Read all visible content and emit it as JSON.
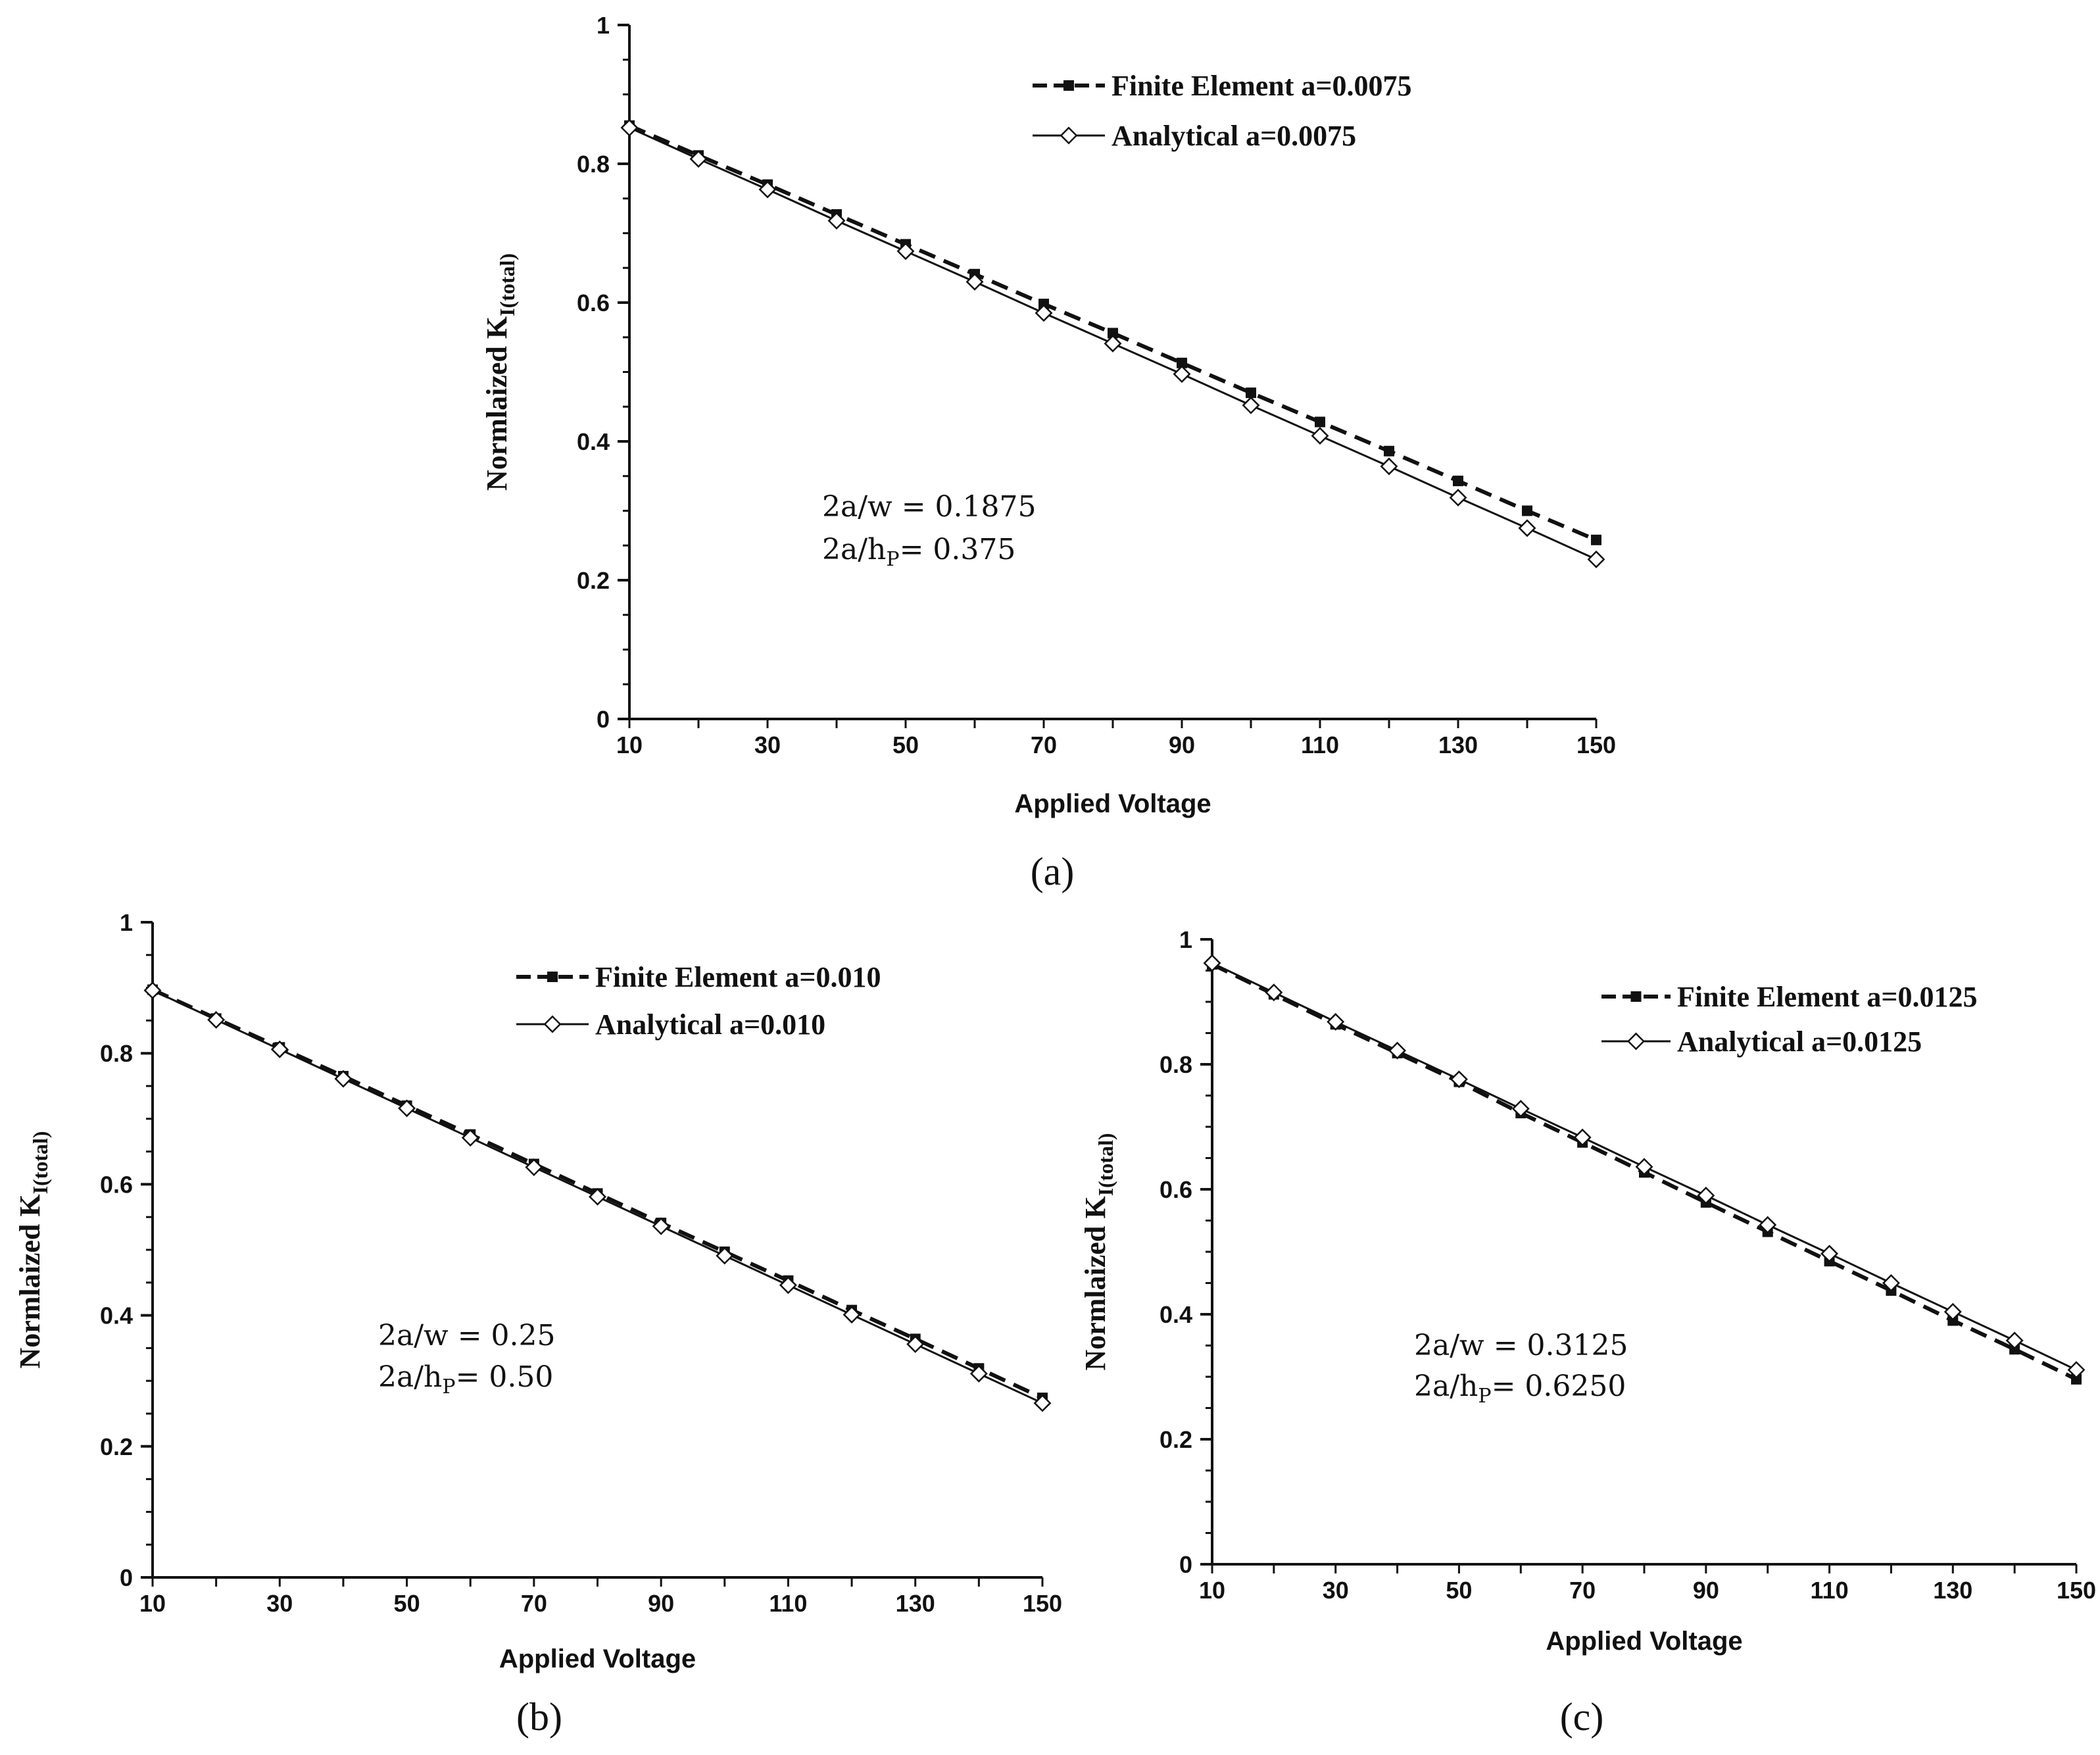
{
  "figure": {
    "colors": {
      "ink": "#111111",
      "background": "#ffffff"
    },
    "panel_labels": [
      "(a)",
      "(b)",
      "(c)"
    ]
  },
  "chart_data": [
    {
      "type": "line",
      "panel": "(a)",
      "xlabel": "Applied Voltage",
      "ylabel": "Normlaized K",
      "ylabel_sub": "I(total)",
      "xlim": [
        10,
        150
      ],
      "ylim": [
        0,
        1
      ],
      "xticks": [
        10,
        30,
        50,
        70,
        90,
        110,
        130,
        150
      ],
      "yticks": [
        0,
        0.2,
        0.4,
        0.6,
        0.8,
        1
      ],
      "ytick_labels": [
        "0",
        "0.2",
        "0.4",
        "0.6",
        "0.8",
        "1"
      ],
      "x": [
        10,
        20,
        30,
        40,
        50,
        60,
        70,
        80,
        90,
        100,
        110,
        120,
        130,
        140,
        150
      ],
      "series": [
        {
          "name": "Finite Element  a=0.0075",
          "style": "dashed",
          "marker": "square",
          "values": [
            0.855,
            0.812,
            0.77,
            0.727,
            0.684,
            0.641,
            0.598,
            0.556,
            0.513,
            0.47,
            0.428,
            0.386,
            0.343,
            0.3,
            0.258
          ]
        },
        {
          "name": "Analytical  a=0.0075",
          "style": "solid",
          "marker": "diamond",
          "values": [
            0.852,
            0.807,
            0.763,
            0.718,
            0.674,
            0.63,
            0.585,
            0.541,
            0.497,
            0.452,
            0.408,
            0.364,
            0.319,
            0.275,
            0.23
          ]
        }
      ],
      "annotations": [
        "2a/w  = 0.1875",
        "2a/h",
        "= 0.375"
      ]
    },
    {
      "type": "line",
      "panel": "(b)",
      "xlabel": "Applied Voltage",
      "ylabel": "Normlaized K",
      "ylabel_sub": "I(total)",
      "xlim": [
        10,
        150
      ],
      "ylim": [
        0,
        1
      ],
      "xticks": [
        10,
        30,
        50,
        70,
        90,
        110,
        130,
        150
      ],
      "yticks": [
        0,
        0.2,
        0.4,
        0.6,
        0.8,
        1
      ],
      "ytick_labels": [
        "0",
        "0.2",
        "0.4",
        "0.6",
        "0.8",
        "1"
      ],
      "x": [
        10,
        20,
        30,
        40,
        50,
        60,
        70,
        80,
        90,
        100,
        110,
        120,
        130,
        140,
        150
      ],
      "series": [
        {
          "name": "Finite Element  a=0.010",
          "style": "dashed",
          "marker": "square",
          "values": [
            0.897,
            0.853,
            0.809,
            0.765,
            0.72,
            0.676,
            0.631,
            0.586,
            0.541,
            0.497,
            0.453,
            0.408,
            0.364,
            0.319,
            0.274
          ]
        },
        {
          "name": "Analytical  a=0.010",
          "style": "solid",
          "marker": "diamond",
          "values": [
            0.896,
            0.851,
            0.806,
            0.761,
            0.716,
            0.671,
            0.626,
            0.581,
            0.536,
            0.491,
            0.446,
            0.401,
            0.356,
            0.311,
            0.266
          ]
        }
      ],
      "annotations": [
        "2a/w  = 0.25",
        "2a/h",
        "= 0.50"
      ]
    },
    {
      "type": "line",
      "panel": "(c)",
      "xlabel": "Applied Voltage",
      "ylabel": "Normlaized K",
      "ylabel_sub": "I(total)",
      "xlim": [
        10,
        150
      ],
      "ylim": [
        0,
        1
      ],
      "xticks": [
        10,
        30,
        50,
        70,
        90,
        110,
        130,
        150
      ],
      "yticks": [
        0,
        0.2,
        0.4,
        0.6,
        0.8,
        1
      ],
      "ytick_labels": [
        "0",
        "0.2",
        "0.4",
        "0.6",
        "0.8",
        "1"
      ],
      "x": [
        10,
        20,
        30,
        40,
        50,
        60,
        70,
        80,
        90,
        100,
        110,
        120,
        130,
        140,
        150
      ],
      "series": [
        {
          "name": "Finite Element  a=0.0125",
          "style": "dashed",
          "marker": "square",
          "values": [
            0.96,
            0.912,
            0.864,
            0.818,
            0.772,
            0.722,
            0.675,
            0.627,
            0.579,
            0.532,
            0.485,
            0.438,
            0.39,
            0.344,
            0.296
          ]
        },
        {
          "name": "Analytical  a=0.0125",
          "style": "solid",
          "marker": "diamond",
          "values": [
            0.962,
            0.915,
            0.868,
            0.822,
            0.776,
            0.729,
            0.683,
            0.636,
            0.59,
            0.543,
            0.497,
            0.45,
            0.404,
            0.358,
            0.311
          ]
        }
      ],
      "annotations": [
        "2a/w  = 0.3125",
        "2a/h",
        "= 0.6250"
      ]
    }
  ]
}
